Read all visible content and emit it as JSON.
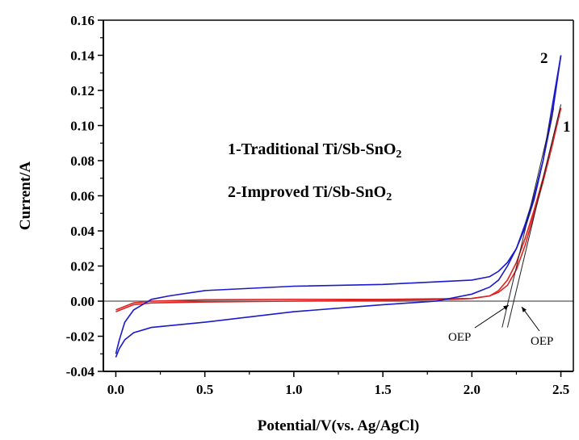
{
  "chart_data": {
    "type": "line",
    "title": "",
    "xlabel": "Potential/V(vs. Ag/AgCl)",
    "ylabel": "Current/A",
    "xlim": [
      -0.07,
      2.57
    ],
    "ylim": [
      -0.04,
      0.16
    ],
    "xticks": [
      "0.0",
      "0.5",
      "1.0",
      "1.5",
      "2.0",
      "2.5"
    ],
    "yticks": [
      "-0.04",
      "-0.02",
      "0.00",
      "0.02",
      "0.04",
      "0.06",
      "0.08",
      "0.10",
      "0.12",
      "0.14",
      "0.16"
    ],
    "grid": false,
    "zero_line": true,
    "legend_lines": [
      "1-Traditional Ti/Sb-SnO",
      "2-Improved Ti/Sb-SnO"
    ],
    "legend_subscript": "2",
    "series_labels": [
      "1",
      "2"
    ],
    "annotations": [
      "OEP",
      "OEP"
    ],
    "series": [
      {
        "color": "#dd2222",
        "forward": [
          [
            0.0,
            -0.006
          ],
          [
            0.05,
            -0.004
          ],
          [
            0.1,
            -0.002
          ],
          [
            0.2,
            -0.001
          ],
          [
            0.5,
            -0.0005
          ],
          [
            1.0,
            0.0
          ],
          [
            1.5,
            0.0005
          ],
          [
            1.9,
            0.001
          ],
          [
            2.0,
            0.0015
          ],
          [
            2.1,
            0.003
          ],
          [
            2.15,
            0.006
          ],
          [
            2.2,
            0.012
          ],
          [
            2.25,
            0.022
          ],
          [
            2.3,
            0.036
          ],
          [
            2.35,
            0.052
          ],
          [
            2.4,
            0.07
          ],
          [
            2.45,
            0.09
          ],
          [
            2.5,
            0.11
          ]
        ],
        "backward": [
          [
            2.5,
            0.11
          ],
          [
            2.45,
            0.088
          ],
          [
            2.4,
            0.068
          ],
          [
            2.35,
            0.05
          ],
          [
            2.3,
            0.032
          ],
          [
            2.25,
            0.018
          ],
          [
            2.2,
            0.009
          ],
          [
            2.15,
            0.005
          ],
          [
            2.1,
            0.003
          ],
          [
            2.0,
            0.0015
          ],
          [
            1.5,
            0.001
          ],
          [
            1.0,
            0.001
          ],
          [
            0.5,
            0.0008
          ],
          [
            0.2,
            0.0
          ],
          [
            0.1,
            -0.001
          ],
          [
            0.05,
            -0.003
          ],
          [
            0.0,
            -0.005
          ]
        ]
      },
      {
        "color": "#1a1acc",
        "forward": [
          [
            0.0,
            -0.032
          ],
          [
            0.02,
            -0.027
          ],
          [
            0.05,
            -0.022
          ],
          [
            0.1,
            -0.018
          ],
          [
            0.2,
            -0.015
          ],
          [
            0.5,
            -0.012
          ],
          [
            1.0,
            -0.006
          ],
          [
            1.5,
            -0.002
          ],
          [
            1.8,
            0.0
          ],
          [
            2.0,
            0.004
          ],
          [
            2.1,
            0.008
          ],
          [
            2.15,
            0.012
          ],
          [
            2.2,
            0.02
          ],
          [
            2.25,
            0.03
          ],
          [
            2.3,
            0.044
          ],
          [
            2.35,
            0.06
          ],
          [
            2.4,
            0.08
          ],
          [
            2.45,
            0.105
          ],
          [
            2.5,
            0.14
          ]
        ],
        "backward": [
          [
            2.5,
            0.14
          ],
          [
            2.45,
            0.11
          ],
          [
            2.4,
            0.08
          ],
          [
            2.35,
            0.058
          ],
          [
            2.3,
            0.042
          ],
          [
            2.25,
            0.03
          ],
          [
            2.2,
            0.022
          ],
          [
            2.15,
            0.017
          ],
          [
            2.1,
            0.014
          ],
          [
            2.0,
            0.012
          ],
          [
            1.5,
            0.0095
          ],
          [
            1.0,
            0.0085
          ],
          [
            0.5,
            0.006
          ],
          [
            0.3,
            0.003
          ],
          [
            0.2,
            0.001
          ],
          [
            0.1,
            -0.005
          ],
          [
            0.05,
            -0.012
          ],
          [
            0.02,
            -0.022
          ],
          [
            0.0,
            -0.03
          ]
        ]
      }
    ],
    "tangent_lines": [
      [
        [
          2.17,
          -0.015
        ],
        [
          2.46,
          0.11
        ]
      ],
      [
        [
          2.2,
          -0.015
        ],
        [
          2.5,
          0.112
        ]
      ]
    ]
  }
}
